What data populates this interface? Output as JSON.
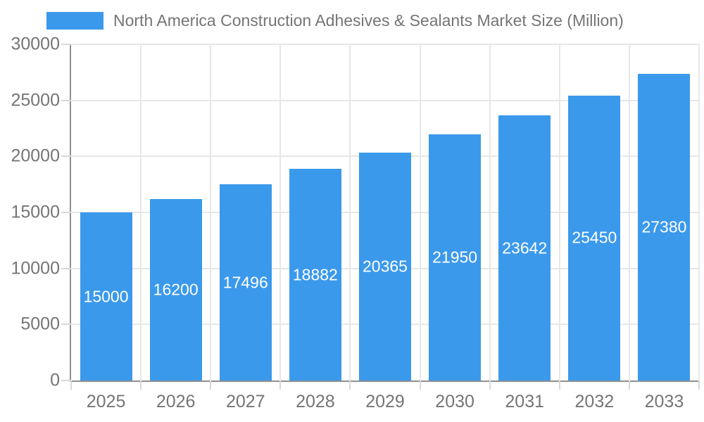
{
  "chart_data": {
    "type": "bar",
    "title": "North America Construction Adhesives & Sealants Market Size (Million)",
    "categories": [
      "2025",
      "2026",
      "2027",
      "2028",
      "2029",
      "2030",
      "2031",
      "2032",
      "2033"
    ],
    "values": [
      15000,
      16200,
      17496,
      18882,
      20365,
      21950,
      23642,
      25450,
      27380
    ],
    "xlabel": "",
    "ylabel": "",
    "ylim": [
      0,
      30000
    ],
    "yticks": [
      0,
      5000,
      10000,
      15000,
      20000,
      25000,
      30000
    ],
    "grid": true,
    "bar_labels_visible": true,
    "legend_position": "top"
  },
  "legend": {
    "label": "North America Construction Adhesives & Sealants Market Size (Million)"
  },
  "colors": {
    "bar": "#3B99EC",
    "bar_label_text": "#FFFFFF",
    "axis_line": "#8F8F8F",
    "grid_line": "#E7E7E7",
    "tick_line": "#D8D8D8",
    "label_text": "#757575",
    "background": "#FFFFFF"
  }
}
